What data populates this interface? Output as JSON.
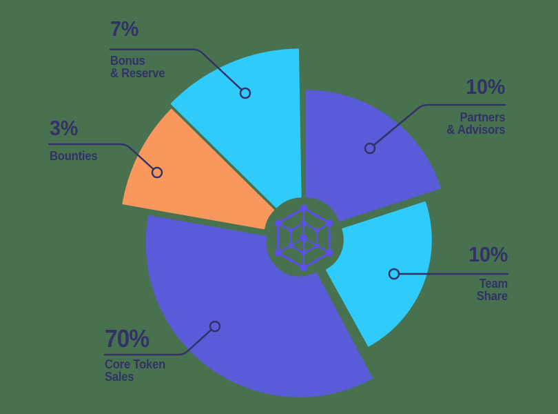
{
  "colors": {
    "background": "#48714F",
    "ink": "#313266",
    "icon": "#5B4FF0"
  },
  "chart_data": {
    "type": "pie",
    "title": "Token distribution donut chart with exploded slices",
    "unit": "%",
    "center_icon": "hexagon-network-icon",
    "center": [
      441,
      344
    ],
    "inner_r": 50,
    "slices": [
      {
        "label": "Bonus & Reserve",
        "value": 7,
        "color": "#2ECBFB",
        "start": 314.5,
        "end": 359,
        "outer_r": 263,
        "explode": 10
      },
      {
        "label": "Partners & Advisors",
        "value": 10,
        "color": "#5A5BD8",
        "start": 0,
        "end": 72,
        "outer_r": 203,
        "explode": 10,
        "explode_dir": 25
      },
      {
        "label": "Team Share",
        "value": 10,
        "color": "#2ECBFB",
        "start": 72,
        "end": 151,
        "outer_r": 175,
        "explode": 10
      },
      {
        "label": "Core Token Sales",
        "value": 70,
        "color": "#5A5BD8",
        "start": 152,
        "end": 280,
        "outer_r": 222,
        "explode": 10
      },
      {
        "label": "Bounties",
        "value": 3,
        "color": "#F9975D",
        "start": 280,
        "end": 314.5,
        "outer_r": 257,
        "explode": 10
      }
    ]
  },
  "callouts": [
    {
      "pct": "7%",
      "lines": [
        "Bonus",
        "& Reserve"
      ]
    },
    {
      "pct": "10%",
      "lines": [
        "Partners",
        "& Advisors"
      ]
    },
    {
      "pct": "10%",
      "lines": [
        "Team",
        "Share"
      ]
    },
    {
      "pct": "70%",
      "lines": [
        "Core Token",
        "Sales"
      ]
    },
    {
      "pct": "3%",
      "lines": [
        "Bounties"
      ]
    }
  ]
}
